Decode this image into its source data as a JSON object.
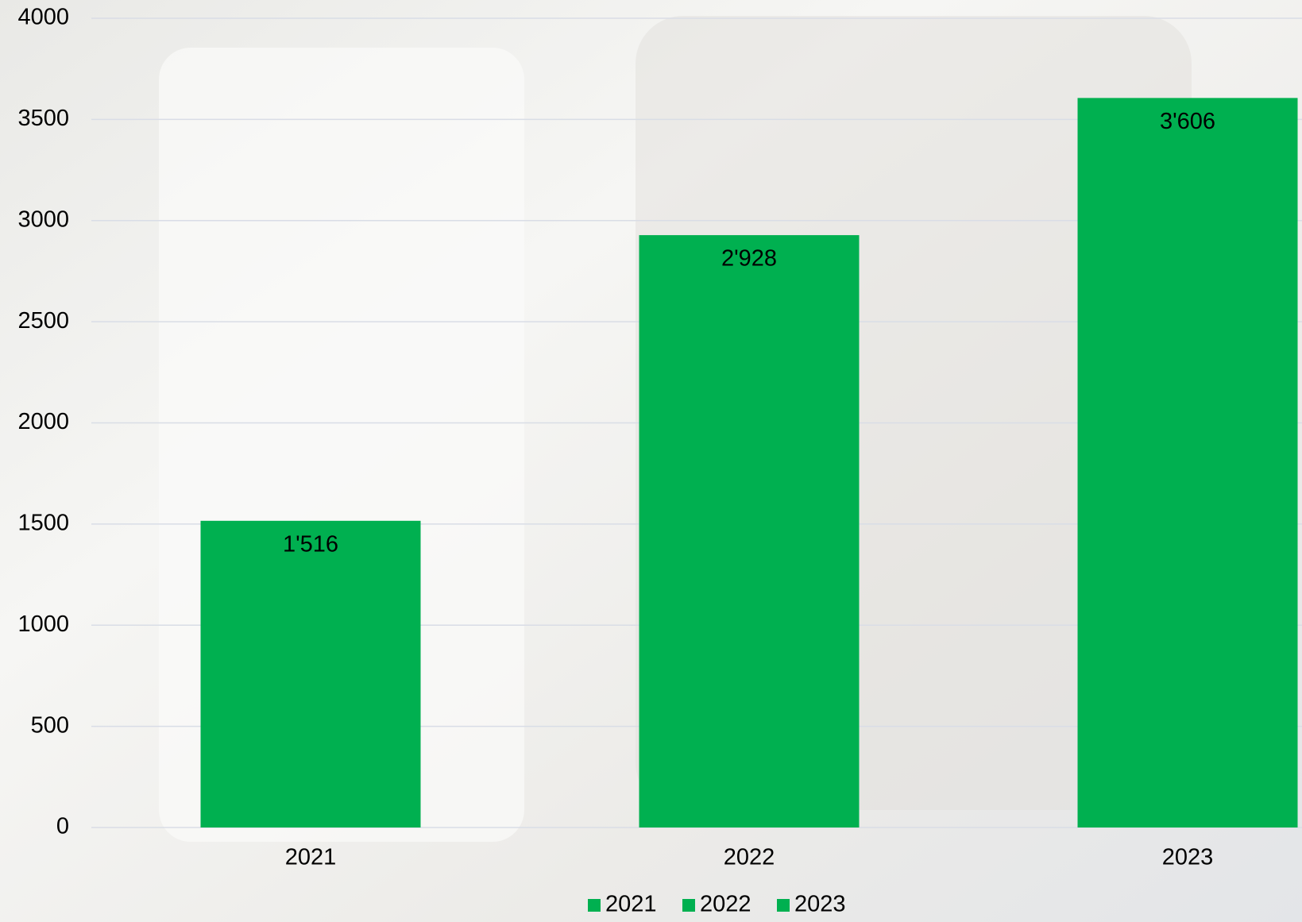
{
  "chart_data": {
    "type": "bar",
    "categories": [
      "2021",
      "2022",
      "2023"
    ],
    "series": [
      {
        "name": "2021",
        "color": "#00b050",
        "values": [
          1516,
          null,
          null
        ],
        "value_labels": [
          "1'516",
          null,
          null
        ]
      },
      {
        "name": "2022",
        "color": "#00b050",
        "values": [
          null,
          2928,
          null
        ],
        "value_labels": [
          null,
          "2'928",
          null
        ]
      },
      {
        "name": "2023",
        "color": "#00b050",
        "values": [
          null,
          null,
          3606
        ],
        "value_labels": [
          null,
          null,
          "3'606"
        ]
      }
    ],
    "ylim": [
      0,
      4000
    ],
    "yticks": [
      0,
      500,
      1000,
      1500,
      2000,
      2500,
      3000,
      3500,
      4000
    ],
    "grid": true,
    "legend": "bottom"
  }
}
